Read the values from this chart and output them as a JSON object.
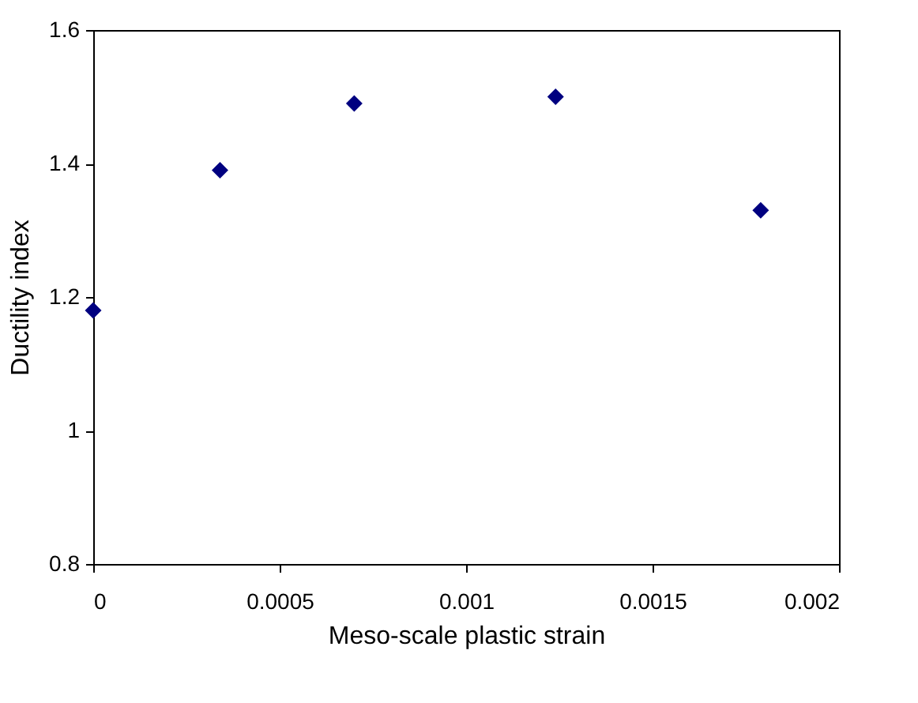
{
  "chart_data": {
    "type": "scatter",
    "xlabel": "Meso-scale plastic strain",
    "ylabel": "Ductility index",
    "x": [
      0,
      0.00034,
      0.0007,
      0.00124,
      0.00179
    ],
    "series": [
      {
        "color": "#000080",
        "values": [
          1.18,
          1.39,
          1.49,
          1.5,
          1.33
        ]
      }
    ],
    "xlim": [
      0,
      0.002
    ],
    "xticks": [
      0,
      0.0005,
      0.001,
      0.0015,
      0.002
    ],
    "ylim": [
      0.8,
      1.6
    ],
    "yticks": [
      0.8,
      1,
      1.2,
      1.4,
      1.6
    ],
    "grid": false,
    "legend": false,
    "marker": "diamond"
  }
}
